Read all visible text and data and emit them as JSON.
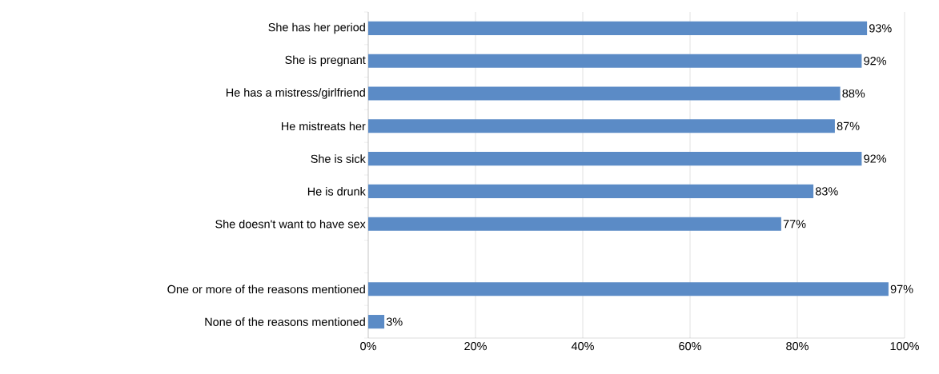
{
  "chart_data": {
    "type": "bar",
    "orientation": "horizontal",
    "categories": [
      "She has her period",
      "She is pregnant",
      "He has a mistress/girlfriend",
      "He mistreats her",
      "She is sick",
      "He is drunk",
      "She doesn't want to have sex",
      null,
      "One or more of the reasons mentioned",
      "None of the reasons mentioned"
    ],
    "values": [
      93,
      92,
      88,
      87,
      92,
      83,
      77,
      null,
      97,
      3
    ],
    "value_labels": [
      "93%",
      "92%",
      "88%",
      "87%",
      "92%",
      "83%",
      "77%",
      null,
      "97%",
      "3%"
    ],
    "color": "#5b8bc6",
    "xlim": [
      0,
      100
    ],
    "xticks": [
      {
        "value": 0,
        "label": "0%"
      },
      {
        "value": 20,
        "label": "20%"
      },
      {
        "value": 40,
        "label": "40%"
      },
      {
        "value": 60,
        "label": "60%"
      },
      {
        "value": 80,
        "label": "80%"
      },
      {
        "value": 100,
        "label": "100%"
      }
    ],
    "grid": "x"
  }
}
